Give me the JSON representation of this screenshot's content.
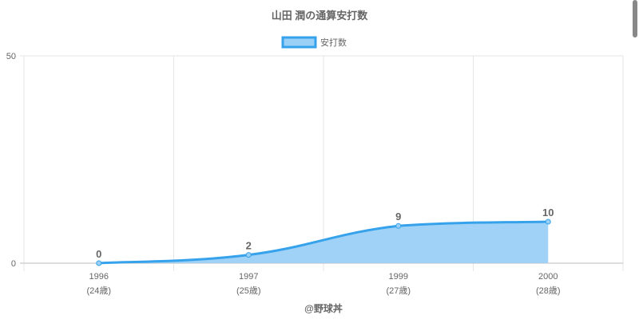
{
  "chart_data": {
    "type": "area",
    "title": "山田 潤の通算安打数",
    "categories": [
      "1996",
      "1997",
      "1999",
      "2000"
    ],
    "category_sublabels": [
      "(24歳)",
      "(25歳)",
      "(27歳)",
      "(28歳)"
    ],
    "series": [
      {
        "name": "安打数",
        "values": [
          0,
          2,
          9,
          10
        ]
      }
    ],
    "ylim": [
      0,
      50
    ],
    "yticks": [
      0,
      50
    ],
    "grid": true,
    "legend": "top-center",
    "colors": {
      "line": "#36a2eb",
      "fill": "#9ad0f5",
      "text": "#666666",
      "grid": "#e6e6e6"
    }
  },
  "footer": "@野球丼"
}
